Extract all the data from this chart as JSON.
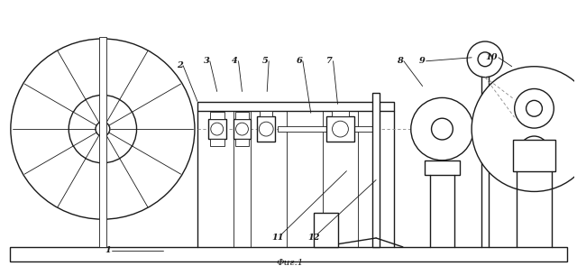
{
  "bg_color": "#ffffff",
  "line_color": "#1a1a1a",
  "lw": 1.0,
  "tlw": 0.6,
  "fig_caption": "Фиг.1"
}
